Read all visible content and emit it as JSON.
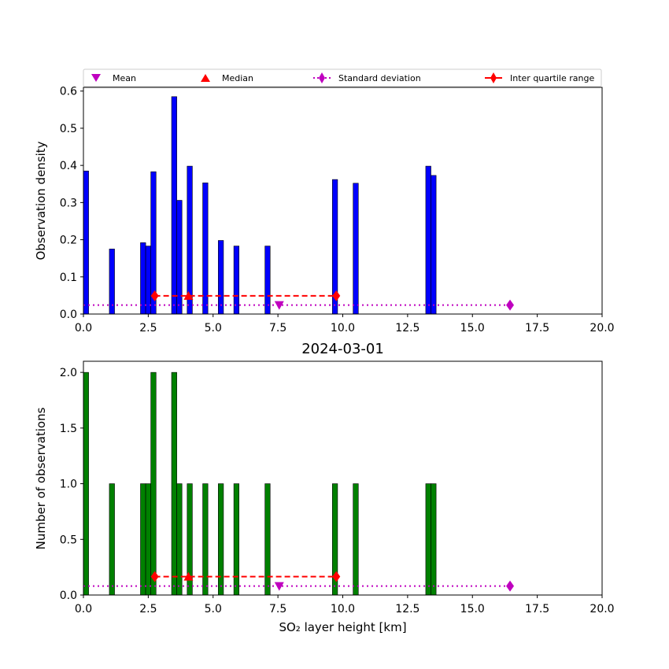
{
  "legend": {
    "items": [
      {
        "label": "Mean",
        "marker": "triangle-down",
        "color": "#bf00bf",
        "line": "none"
      },
      {
        "label": "Median",
        "marker": "triangle-up",
        "color": "#ff0000",
        "line": "none"
      },
      {
        "label": "Standard deviation",
        "marker": "diamond",
        "color": "#bf00bf",
        "line": "dotted"
      },
      {
        "label": "Inter quartile range",
        "marker": "diamond",
        "color": "#ff0000",
        "line": "dashed"
      }
    ],
    "placement": "above top chart"
  },
  "chart_data": [
    {
      "type": "bar",
      "title": "",
      "xlabel": "",
      "ylabel": "Observation density",
      "xlim": [
        0,
        20
      ],
      "ylim": [
        0,
        0.61
      ],
      "xticks": [
        "0.0",
        "2.5",
        "5.0",
        "7.5",
        "10.0",
        "12.5",
        "15.0",
        "17.5",
        "20.0"
      ],
      "yticks": [
        "0.0",
        "0.1",
        "0.2",
        "0.3",
        "0.4",
        "0.5",
        "0.6"
      ],
      "ytick_values": [
        0,
        0.1,
        0.2,
        0.3,
        0.4,
        0.5,
        0.6
      ],
      "bar_color": "#0000ff",
      "bar_width": 0.2,
      "bars": [
        {
          "x": 0.0,
          "value": 0.385
        },
        {
          "x": 1.0,
          "value": 0.175
        },
        {
          "x": 2.2,
          "value": 0.192
        },
        {
          "x": 2.4,
          "value": 0.183
        },
        {
          "x": 2.6,
          "value": 0.383
        },
        {
          "x": 3.4,
          "value": 0.585
        },
        {
          "x": 3.6,
          "value": 0.306
        },
        {
          "x": 4.0,
          "value": 0.398
        },
        {
          "x": 4.6,
          "value": 0.353
        },
        {
          "x": 5.2,
          "value": 0.198
        },
        {
          "x": 5.8,
          "value": 0.183
        },
        {
          "x": 7.0,
          "value": 0.183
        },
        {
          "x": 9.6,
          "value": 0.362
        },
        {
          "x": 10.4,
          "value": 0.352
        },
        {
          "x": 13.2,
          "value": 0.398
        },
        {
          "x": 13.4,
          "value": 0.373
        }
      ],
      "mean": {
        "x": 7.55,
        "y": 0.024
      },
      "median": {
        "x": 4.05,
        "y": 0.049
      },
      "std_range": {
        "x": [
          0,
          16.45
        ],
        "y": 0.024
      },
      "iqr_range": {
        "x": [
          2.75,
          9.75
        ],
        "y": 0.049
      }
    },
    {
      "type": "bar",
      "title": "2024-03-01",
      "xlabel": "SO₂ layer height [km]",
      "ylabel": "Number of observations",
      "xlim": [
        0,
        20
      ],
      "ylim": [
        0,
        2.1
      ],
      "xticks": [
        "0.0",
        "2.5",
        "5.0",
        "7.5",
        "10.0",
        "12.5",
        "15.0",
        "17.5",
        "20.0"
      ],
      "yticks": [
        "0.0",
        "0.5",
        "1.0",
        "1.5",
        "2.0"
      ],
      "ytick_values": [
        0,
        0.5,
        1.0,
        1.5,
        2.0
      ],
      "bar_color": "#008000",
      "bar_width": 0.2,
      "bars": [
        {
          "x": 0.0,
          "value": 2
        },
        {
          "x": 1.0,
          "value": 1
        },
        {
          "x": 2.2,
          "value": 1
        },
        {
          "x": 2.4,
          "value": 1
        },
        {
          "x": 2.6,
          "value": 2
        },
        {
          "x": 3.4,
          "value": 2
        },
        {
          "x": 3.6,
          "value": 1
        },
        {
          "x": 4.0,
          "value": 1
        },
        {
          "x": 4.6,
          "value": 1
        },
        {
          "x": 5.2,
          "value": 1
        },
        {
          "x": 5.8,
          "value": 1
        },
        {
          "x": 7.0,
          "value": 1
        },
        {
          "x": 9.6,
          "value": 1
        },
        {
          "x": 10.4,
          "value": 1
        },
        {
          "x": 13.2,
          "value": 1
        },
        {
          "x": 13.4,
          "value": 1
        }
      ],
      "mean": {
        "x": 7.55,
        "y": 0.08
      },
      "median": {
        "x": 4.05,
        "y": 0.165
      },
      "std_range": {
        "x": [
          0,
          16.45
        ],
        "y": 0.08
      },
      "iqr_range": {
        "x": [
          2.75,
          9.75
        ],
        "y": 0.165
      }
    }
  ]
}
